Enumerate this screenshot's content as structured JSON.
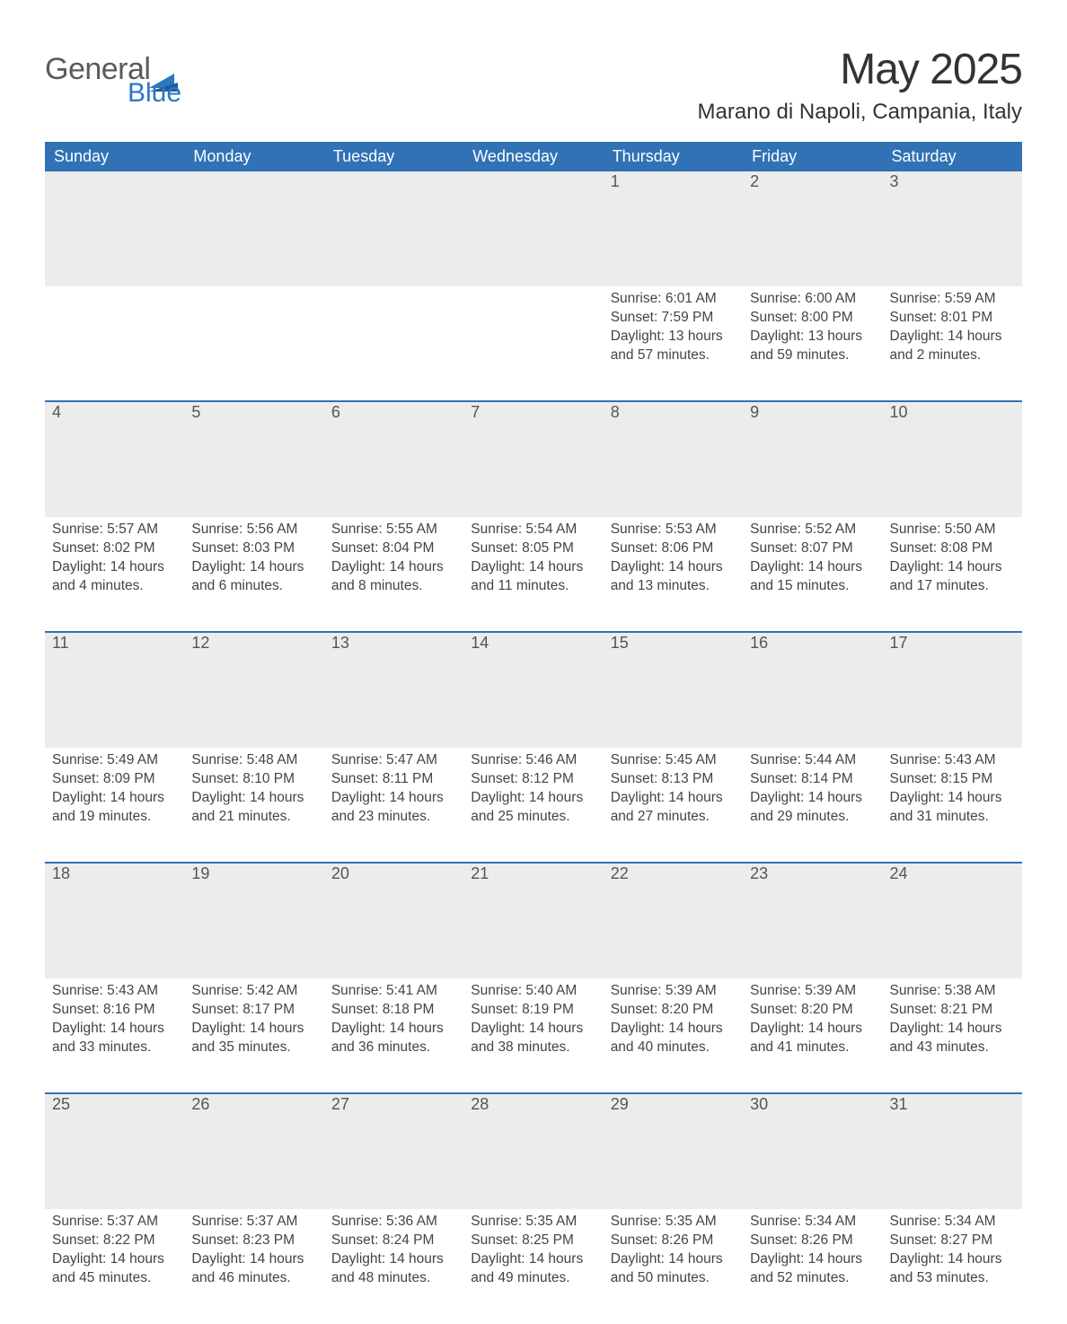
{
  "logo": {
    "text_general": "General",
    "text_blue": "Blue"
  },
  "title": "May 2025",
  "location": "Marano di Napoli, Campania, Italy",
  "colors": {
    "header_bg": "#3072b5",
    "header_fg": "#ffffff",
    "daynum_bg": "#ececec",
    "text": "#333333",
    "logo_gray": "#5a5a5a",
    "logo_blue": "#2a78c2",
    "row_separator": "#3072b5"
  },
  "fonts": {
    "title_size_pt": 36,
    "location_size_pt": 18,
    "weekday_size_pt": 14,
    "daynum_size_pt": 14,
    "body_size_pt": 12
  },
  "weekdays": [
    "Sunday",
    "Monday",
    "Tuesday",
    "Wednesday",
    "Thursday",
    "Friday",
    "Saturday"
  ],
  "weeks": [
    [
      null,
      null,
      null,
      null,
      {
        "day": "1",
        "sunrise": "6:01 AM",
        "sunset": "7:59 PM",
        "daylight": "13 hours and 57 minutes."
      },
      {
        "day": "2",
        "sunrise": "6:00 AM",
        "sunset": "8:00 PM",
        "daylight": "13 hours and 59 minutes."
      },
      {
        "day": "3",
        "sunrise": "5:59 AM",
        "sunset": "8:01 PM",
        "daylight": "14 hours and 2 minutes."
      }
    ],
    [
      {
        "day": "4",
        "sunrise": "5:57 AM",
        "sunset": "8:02 PM",
        "daylight": "14 hours and 4 minutes."
      },
      {
        "day": "5",
        "sunrise": "5:56 AM",
        "sunset": "8:03 PM",
        "daylight": "14 hours and 6 minutes."
      },
      {
        "day": "6",
        "sunrise": "5:55 AM",
        "sunset": "8:04 PM",
        "daylight": "14 hours and 8 minutes."
      },
      {
        "day": "7",
        "sunrise": "5:54 AM",
        "sunset": "8:05 PM",
        "daylight": "14 hours and 11 minutes."
      },
      {
        "day": "8",
        "sunrise": "5:53 AM",
        "sunset": "8:06 PM",
        "daylight": "14 hours and 13 minutes."
      },
      {
        "day": "9",
        "sunrise": "5:52 AM",
        "sunset": "8:07 PM",
        "daylight": "14 hours and 15 minutes."
      },
      {
        "day": "10",
        "sunrise": "5:50 AM",
        "sunset": "8:08 PM",
        "daylight": "14 hours and 17 minutes."
      }
    ],
    [
      {
        "day": "11",
        "sunrise": "5:49 AM",
        "sunset": "8:09 PM",
        "daylight": "14 hours and 19 minutes."
      },
      {
        "day": "12",
        "sunrise": "5:48 AM",
        "sunset": "8:10 PM",
        "daylight": "14 hours and 21 minutes."
      },
      {
        "day": "13",
        "sunrise": "5:47 AM",
        "sunset": "8:11 PM",
        "daylight": "14 hours and 23 minutes."
      },
      {
        "day": "14",
        "sunrise": "5:46 AM",
        "sunset": "8:12 PM",
        "daylight": "14 hours and 25 minutes."
      },
      {
        "day": "15",
        "sunrise": "5:45 AM",
        "sunset": "8:13 PM",
        "daylight": "14 hours and 27 minutes."
      },
      {
        "day": "16",
        "sunrise": "5:44 AM",
        "sunset": "8:14 PM",
        "daylight": "14 hours and 29 minutes."
      },
      {
        "day": "17",
        "sunrise": "5:43 AM",
        "sunset": "8:15 PM",
        "daylight": "14 hours and 31 minutes."
      }
    ],
    [
      {
        "day": "18",
        "sunrise": "5:43 AM",
        "sunset": "8:16 PM",
        "daylight": "14 hours and 33 minutes."
      },
      {
        "day": "19",
        "sunrise": "5:42 AM",
        "sunset": "8:17 PM",
        "daylight": "14 hours and 35 minutes."
      },
      {
        "day": "20",
        "sunrise": "5:41 AM",
        "sunset": "8:18 PM",
        "daylight": "14 hours and 36 minutes."
      },
      {
        "day": "21",
        "sunrise": "5:40 AM",
        "sunset": "8:19 PM",
        "daylight": "14 hours and 38 minutes."
      },
      {
        "day": "22",
        "sunrise": "5:39 AM",
        "sunset": "8:20 PM",
        "daylight": "14 hours and 40 minutes."
      },
      {
        "day": "23",
        "sunrise": "5:39 AM",
        "sunset": "8:20 PM",
        "daylight": "14 hours and 41 minutes."
      },
      {
        "day": "24",
        "sunrise": "5:38 AM",
        "sunset": "8:21 PM",
        "daylight": "14 hours and 43 minutes."
      }
    ],
    [
      {
        "day": "25",
        "sunrise": "5:37 AM",
        "sunset": "8:22 PM",
        "daylight": "14 hours and 45 minutes."
      },
      {
        "day": "26",
        "sunrise": "5:37 AM",
        "sunset": "8:23 PM",
        "daylight": "14 hours and 46 minutes."
      },
      {
        "day": "27",
        "sunrise": "5:36 AM",
        "sunset": "8:24 PM",
        "daylight": "14 hours and 48 minutes."
      },
      {
        "day": "28",
        "sunrise": "5:35 AM",
        "sunset": "8:25 PM",
        "daylight": "14 hours and 49 minutes."
      },
      {
        "day": "29",
        "sunrise": "5:35 AM",
        "sunset": "8:26 PM",
        "daylight": "14 hours and 50 minutes."
      },
      {
        "day": "30",
        "sunrise": "5:34 AM",
        "sunset": "8:26 PM",
        "daylight": "14 hours and 52 minutes."
      },
      {
        "day": "31",
        "sunrise": "5:34 AM",
        "sunset": "8:27 PM",
        "daylight": "14 hours and 53 minutes."
      }
    ]
  ],
  "labels": {
    "sunrise": "Sunrise: ",
    "sunset": "Sunset: ",
    "daylight": "Daylight: "
  }
}
